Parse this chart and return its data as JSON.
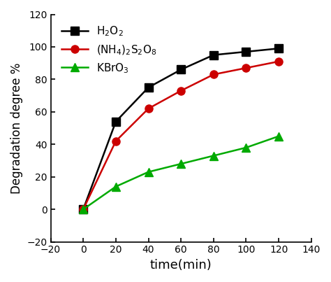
{
  "x": [
    0,
    20,
    40,
    60,
    80,
    100,
    120
  ],
  "h2o2": [
    0,
    54,
    75,
    86,
    95,
    97,
    99
  ],
  "nh4": [
    0,
    42,
    62,
    73,
    83,
    87,
    91
  ],
  "kbro3": [
    0,
    14,
    23,
    28,
    33,
    38,
    45
  ],
  "color_h2o2": "#000000",
  "color_nh4": "#cc0000",
  "color_kbro3": "#00aa00",
  "xlabel": "time(min)",
  "ylabel": "Degradation degree %",
  "xlim": [
    -20,
    140
  ],
  "ylim": [
    -20,
    120
  ],
  "xticks": [
    -20,
    0,
    20,
    40,
    60,
    80,
    100,
    120,
    140
  ],
  "yticks": [
    -20,
    0,
    20,
    40,
    60,
    80,
    100,
    120
  ],
  "label_h2o2": "H$_2$O$_2$",
  "label_nh4": "(NH$_4$)$_2$S$_2$O$_8$",
  "label_kbro3": "KBrO$_3$",
  "linewidth": 1.8,
  "markersize": 8,
  "bg_color": "#ffffff"
}
